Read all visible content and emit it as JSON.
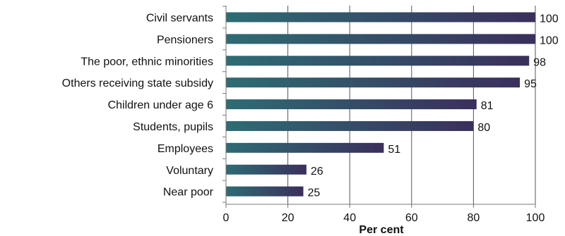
{
  "chart_data": {
    "type": "bar",
    "orientation": "horizontal",
    "categories": [
      "Civil servants",
      "Pensioners",
      "The poor, ethnic minorities",
      "Others receiving state subsidy",
      "Children under age 6",
      "Students, pupils",
      "Employees",
      "Voluntary",
      "Near poor"
    ],
    "values": [
      100,
      100,
      98,
      95,
      81,
      80,
      51,
      26,
      25
    ],
    "data_labels": [
      "100",
      "100",
      "98",
      "95",
      "81",
      "80",
      "51",
      "26",
      "25"
    ],
    "title": "",
    "xlabel": "Per cent",
    "ylabel": "",
    "xlim": [
      0,
      100
    ],
    "x_ticks": [
      0,
      20,
      40,
      60,
      80,
      100
    ],
    "x_tick_labels": [
      "0",
      "20",
      "40",
      "60",
      "80",
      "100"
    ],
    "grid": "vertical",
    "legend": "none",
    "bar_gradient": [
      "#2e6c73",
      "#3b2f5c"
    ],
    "axis_color": "#777777",
    "grid_color": "#555555"
  }
}
